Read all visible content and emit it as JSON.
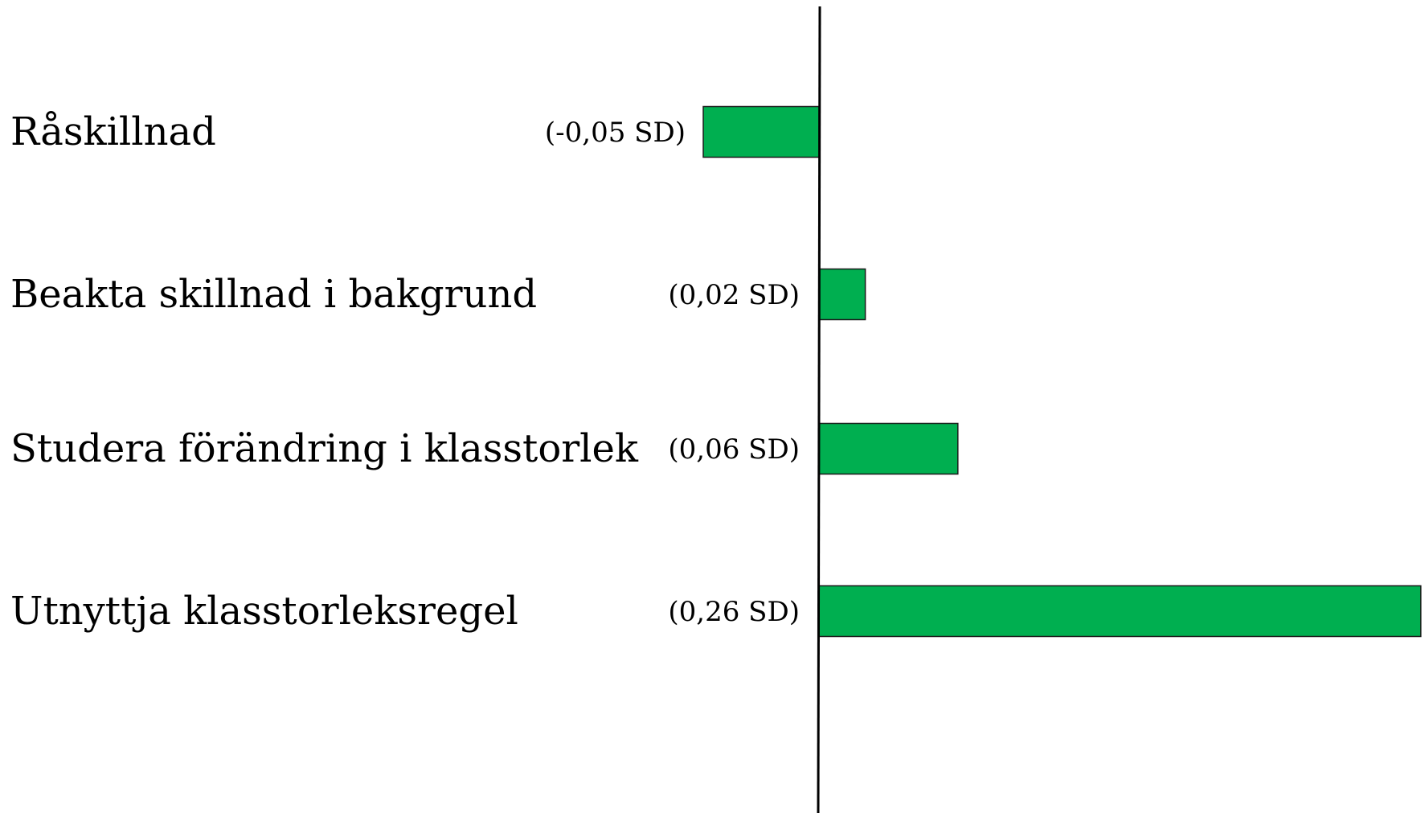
{
  "chart_data": {
    "type": "bar",
    "orientation": "horizontal",
    "categories": [
      "Råskillnad",
      "Beakta skillnad i bakgrund",
      "Studera förändring i klasstorlek",
      "Utnyttja klasstorleksregel"
    ],
    "values": [
      -0.05,
      0.02,
      0.06,
      0.26
    ],
    "value_labels": [
      "(-0,05 SD)",
      "(0,02 SD)",
      "(0,06 SD)",
      "(0,26 SD)"
    ],
    "title": "",
    "xlabel": "",
    "ylabel": "",
    "grid": false,
    "legend": "none",
    "colors": {
      "bar_fill": "#00AF50",
      "bar_stroke": "#1a1a1a",
      "axis": "#000000",
      "text": "#000000"
    }
  }
}
